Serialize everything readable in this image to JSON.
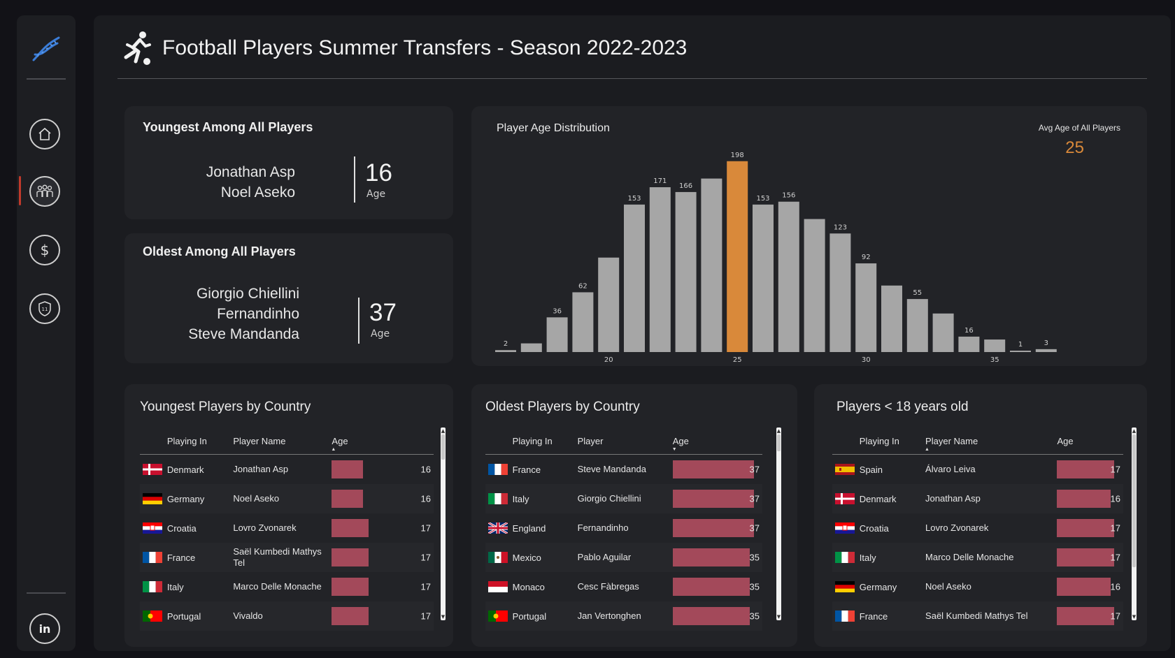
{
  "header": {
    "title": "Football Players Summer Transfers - Season 2022-2023"
  },
  "nav": {
    "items": [
      "home-icon",
      "players-icon",
      "dollar-icon",
      "shield-icon",
      "linkedin-icon"
    ],
    "active": "players-icon"
  },
  "youngest": {
    "title": "Youngest Among All Players",
    "names": [
      "Jonathan Asp",
      "Noel Aseko"
    ],
    "age": "16",
    "age_label": "Age"
  },
  "oldest": {
    "title": "Oldest Among All Players",
    "names": [
      "Giorgio Chiellini",
      "Fernandinho",
      "Steve Mandanda"
    ],
    "age": "37",
    "age_label": "Age"
  },
  "chart_data": {
    "type": "bar",
    "title": "Player Age Distribution",
    "categories": [
      16,
      17,
      18,
      19,
      20,
      21,
      22,
      23,
      24,
      25,
      26,
      27,
      28,
      29,
      30,
      31,
      32,
      33,
      34,
      35,
      36,
      37
    ],
    "values": [
      2,
      9,
      36,
      62,
      98,
      153,
      171,
      166,
      180,
      198,
      153,
      156,
      138,
      123,
      92,
      69,
      55,
      40,
      16,
      13,
      1,
      3
    ],
    "data_labels": {
      "16": "2",
      "18": "36",
      "19": "62",
      "21": "153",
      "22": "171",
      "23": "166",
      "25": "198",
      "26": "153",
      "27": "156",
      "29": "123",
      "30": "92",
      "32": "55",
      "34": "16",
      "36": "1",
      "37": "3"
    },
    "x_ticks": [
      20,
      25,
      30,
      35
    ],
    "highlight": 25,
    "highlight_color": "#d9893a",
    "bar_color": "#a6a6a6",
    "ylim": [
      0,
      200
    ],
    "grid": false
  },
  "avg": {
    "label": "Avg Age of All Players",
    "value": "25"
  },
  "youngest_by_country": {
    "title": "Youngest Players by Country",
    "columns": [
      "Playing In",
      "Player Name",
      "Age"
    ],
    "rows": [
      {
        "flag": "denmark",
        "country": "Denmark",
        "player": "Jonathan Asp",
        "age": 16,
        "age_text": "16"
      },
      {
        "flag": "germany",
        "country": "Germany",
        "player": "Noel Aseko",
        "age": 16,
        "age_text": "16"
      },
      {
        "flag": "croatia",
        "country": "Croatia",
        "player": "Lovro Zvonarek",
        "age": 17,
        "age_text": "17"
      },
      {
        "flag": "france",
        "country": "France",
        "player": "Saël Kumbedi Mathys Tel",
        "age": 17,
        "age_text": "17"
      },
      {
        "flag": "italy",
        "country": "Italy",
        "player": "Marco Delle Monache",
        "age": 17,
        "age_text": "17"
      },
      {
        "flag": "portugal",
        "country": "Portugal",
        "player": "Vivaldo",
        "age": 17,
        "age_text": "17"
      }
    ]
  },
  "oldest_by_country": {
    "title": "Oldest Players by Country",
    "columns": [
      "Playing In",
      "Player",
      "Age"
    ],
    "rows": [
      {
        "flag": "france",
        "country": "France",
        "player": "Steve Mandanda",
        "age": 37,
        "age_text": "37"
      },
      {
        "flag": "italy",
        "country": "Italy",
        "player": "Giorgio Chiellini",
        "age": 37,
        "age_text": "37"
      },
      {
        "flag": "england",
        "country": "England",
        "player": "Fernandinho",
        "age": 37,
        "age_text": "37"
      },
      {
        "flag": "mexico",
        "country": "Mexico",
        "player": "Pablo Aguilar",
        "age": 35,
        "age_text": "35"
      },
      {
        "flag": "monaco",
        "country": "Monaco",
        "player": "Cesc Fàbregas",
        "age": 35,
        "age_text": "35"
      },
      {
        "flag": "portugal",
        "country": "Portugal",
        "player": "Jan Vertonghen",
        "age": 35,
        "age_text": "35"
      }
    ]
  },
  "under18": {
    "title": "Players < 18 years old",
    "columns": [
      "Playing In",
      "Player Name",
      "Age"
    ],
    "rows": [
      {
        "flag": "spain",
        "country": "Spain",
        "player": "Álvaro Leiva",
        "age": 17,
        "age_text": "17"
      },
      {
        "flag": "denmark",
        "country": "Denmark",
        "player": "Jonathan Asp",
        "age": 16,
        "age_text": "16"
      },
      {
        "flag": "croatia",
        "country": "Croatia",
        "player": "Lovro Zvonarek",
        "age": 17,
        "age_text": "17"
      },
      {
        "flag": "italy",
        "country": "Italy",
        "player": "Marco Delle Monache",
        "age": 17,
        "age_text": "17"
      },
      {
        "flag": "germany",
        "country": "Germany",
        "player": "Noel Aseko",
        "age": 16,
        "age_text": "16"
      },
      {
        "flag": "france",
        "country": "France",
        "player": "Saël Kumbedi Mathys Tel",
        "age": 17,
        "age_text": "17"
      }
    ]
  }
}
